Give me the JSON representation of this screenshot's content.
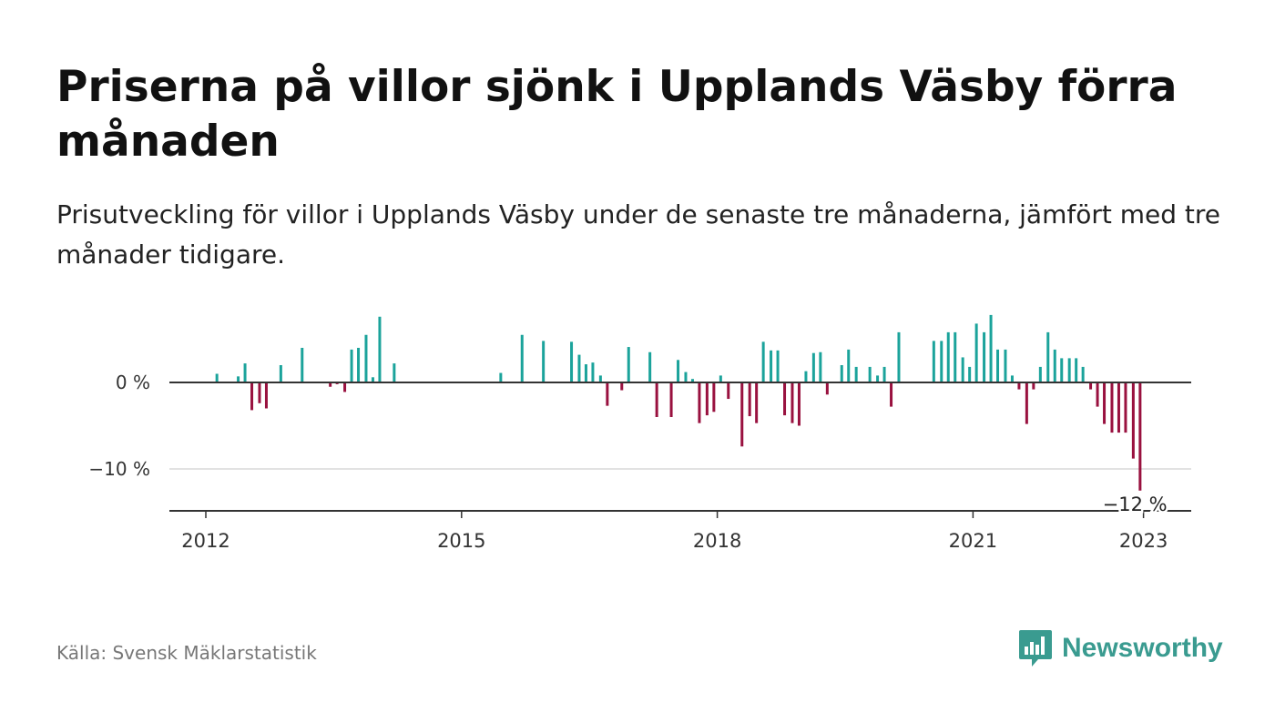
{
  "title": "Priserna på villor sjönk i Upplands Väsby förra månaden",
  "subtitle": "Prisutveckling för villor i Upplands Väsby under de senaste tre månaderna, jämfört med tre månader tidigare.",
  "source": "Källa: Svensk Mäklarstatistik",
  "brand": {
    "name": "Newsworthy",
    "logo_icon": "bar-chart-speech-bubble-icon"
  },
  "colors": {
    "positive": "#1ba39b",
    "negative": "#99113f",
    "zero_line": "#333333",
    "grid": "#d9d9d9",
    "brand": "#3a9b90"
  },
  "chart_data": {
    "type": "bar",
    "x_unit": "year",
    "y_unit": "%",
    "xlim": [
      2011.3,
      2023.6
    ],
    "ylim": [
      -15,
      8
    ],
    "y_ticks": [
      0,
      -10
    ],
    "y_tick_labels": [
      "0 %",
      "−10 %"
    ],
    "x_ticks": [
      2012,
      2015,
      2018,
      2021,
      2023
    ],
    "x_tick_labels": [
      "2012",
      "2015",
      "2018",
      "2021",
      "2023"
    ],
    "grid": true,
    "annotation": {
      "x": 2022.92,
      "y": -12,
      "text": "−12 %"
    },
    "x": [
      2012.13,
      2012.38,
      2012.46,
      2012.54,
      2012.63,
      2012.71,
      2012.88,
      2013.13,
      2013.46,
      2013.54,
      2013.63,
      2013.71,
      2013.79,
      2013.88,
      2013.96,
      2014.04,
      2014.21,
      2015.46,
      2015.71,
      2015.96,
      2016.29,
      2016.38,
      2016.46,
      2016.54,
      2016.63,
      2016.71,
      2016.88,
      2016.96,
      2017.21,
      2017.29,
      2017.46,
      2017.54,
      2017.63,
      2017.71,
      2017.79,
      2017.88,
      2017.96,
      2018.04,
      2018.13,
      2018.29,
      2018.38,
      2018.46,
      2018.54,
      2018.63,
      2018.71,
      2018.79,
      2018.88,
      2018.96,
      2019.04,
      2019.13,
      2019.21,
      2019.29,
      2019.46,
      2019.54,
      2019.63,
      2019.79,
      2019.88,
      2019.96,
      2020.04,
      2020.13,
      2020.54,
      2020.63,
      2020.71,
      2020.79,
      2020.88,
      2020.96,
      2021.04,
      2021.13,
      2021.21,
      2021.29,
      2021.38,
      2021.46,
      2021.54,
      2021.63,
      2021.71,
      2021.79,
      2021.88,
      2021.96,
      2022.04,
      2022.13,
      2022.21,
      2022.29,
      2022.38,
      2022.46,
      2022.54,
      2022.63,
      2022.71,
      2022.79,
      2022.88,
      2022.96
    ],
    "values": [
      1.0,
      0.7,
      2.2,
      -3.2,
      -2.4,
      -3.0,
      2.0,
      4.0,
      -0.5,
      -0.2,
      -1.1,
      3.8,
      4.0,
      5.5,
      0.6,
      7.6,
      2.2,
      1.1,
      5.5,
      4.8,
      4.7,
      3.2,
      2.1,
      2.3,
      0.8,
      -2.7,
      -0.9,
      4.1,
      3.5,
      -4.0,
      -4.0,
      2.6,
      1.2,
      0.4,
      -4.7,
      -3.8,
      -3.4,
      0.8,
      -1.9,
      -7.4,
      -3.9,
      -4.7,
      4.7,
      3.7,
      3.7,
      -3.8,
      -4.7,
      -5.0,
      1.3,
      3.4,
      3.5,
      -1.4,
      2.0,
      3.8,
      1.8,
      1.8,
      0.8,
      1.8,
      -2.8,
      5.8,
      4.8,
      4.8,
      5.8,
      5.8,
      2.9,
      1.8,
      6.8,
      5.8,
      7.8,
      3.8,
      3.8,
      0.8,
      -0.8,
      -4.8,
      -0.8,
      1.8,
      5.8,
      3.8,
      2.8,
      2.8,
      2.8,
      1.8,
      -0.8,
      -2.8,
      -4.8,
      -5.8,
      -5.8,
      -5.8,
      -8.8,
      -12.5
    ]
  }
}
